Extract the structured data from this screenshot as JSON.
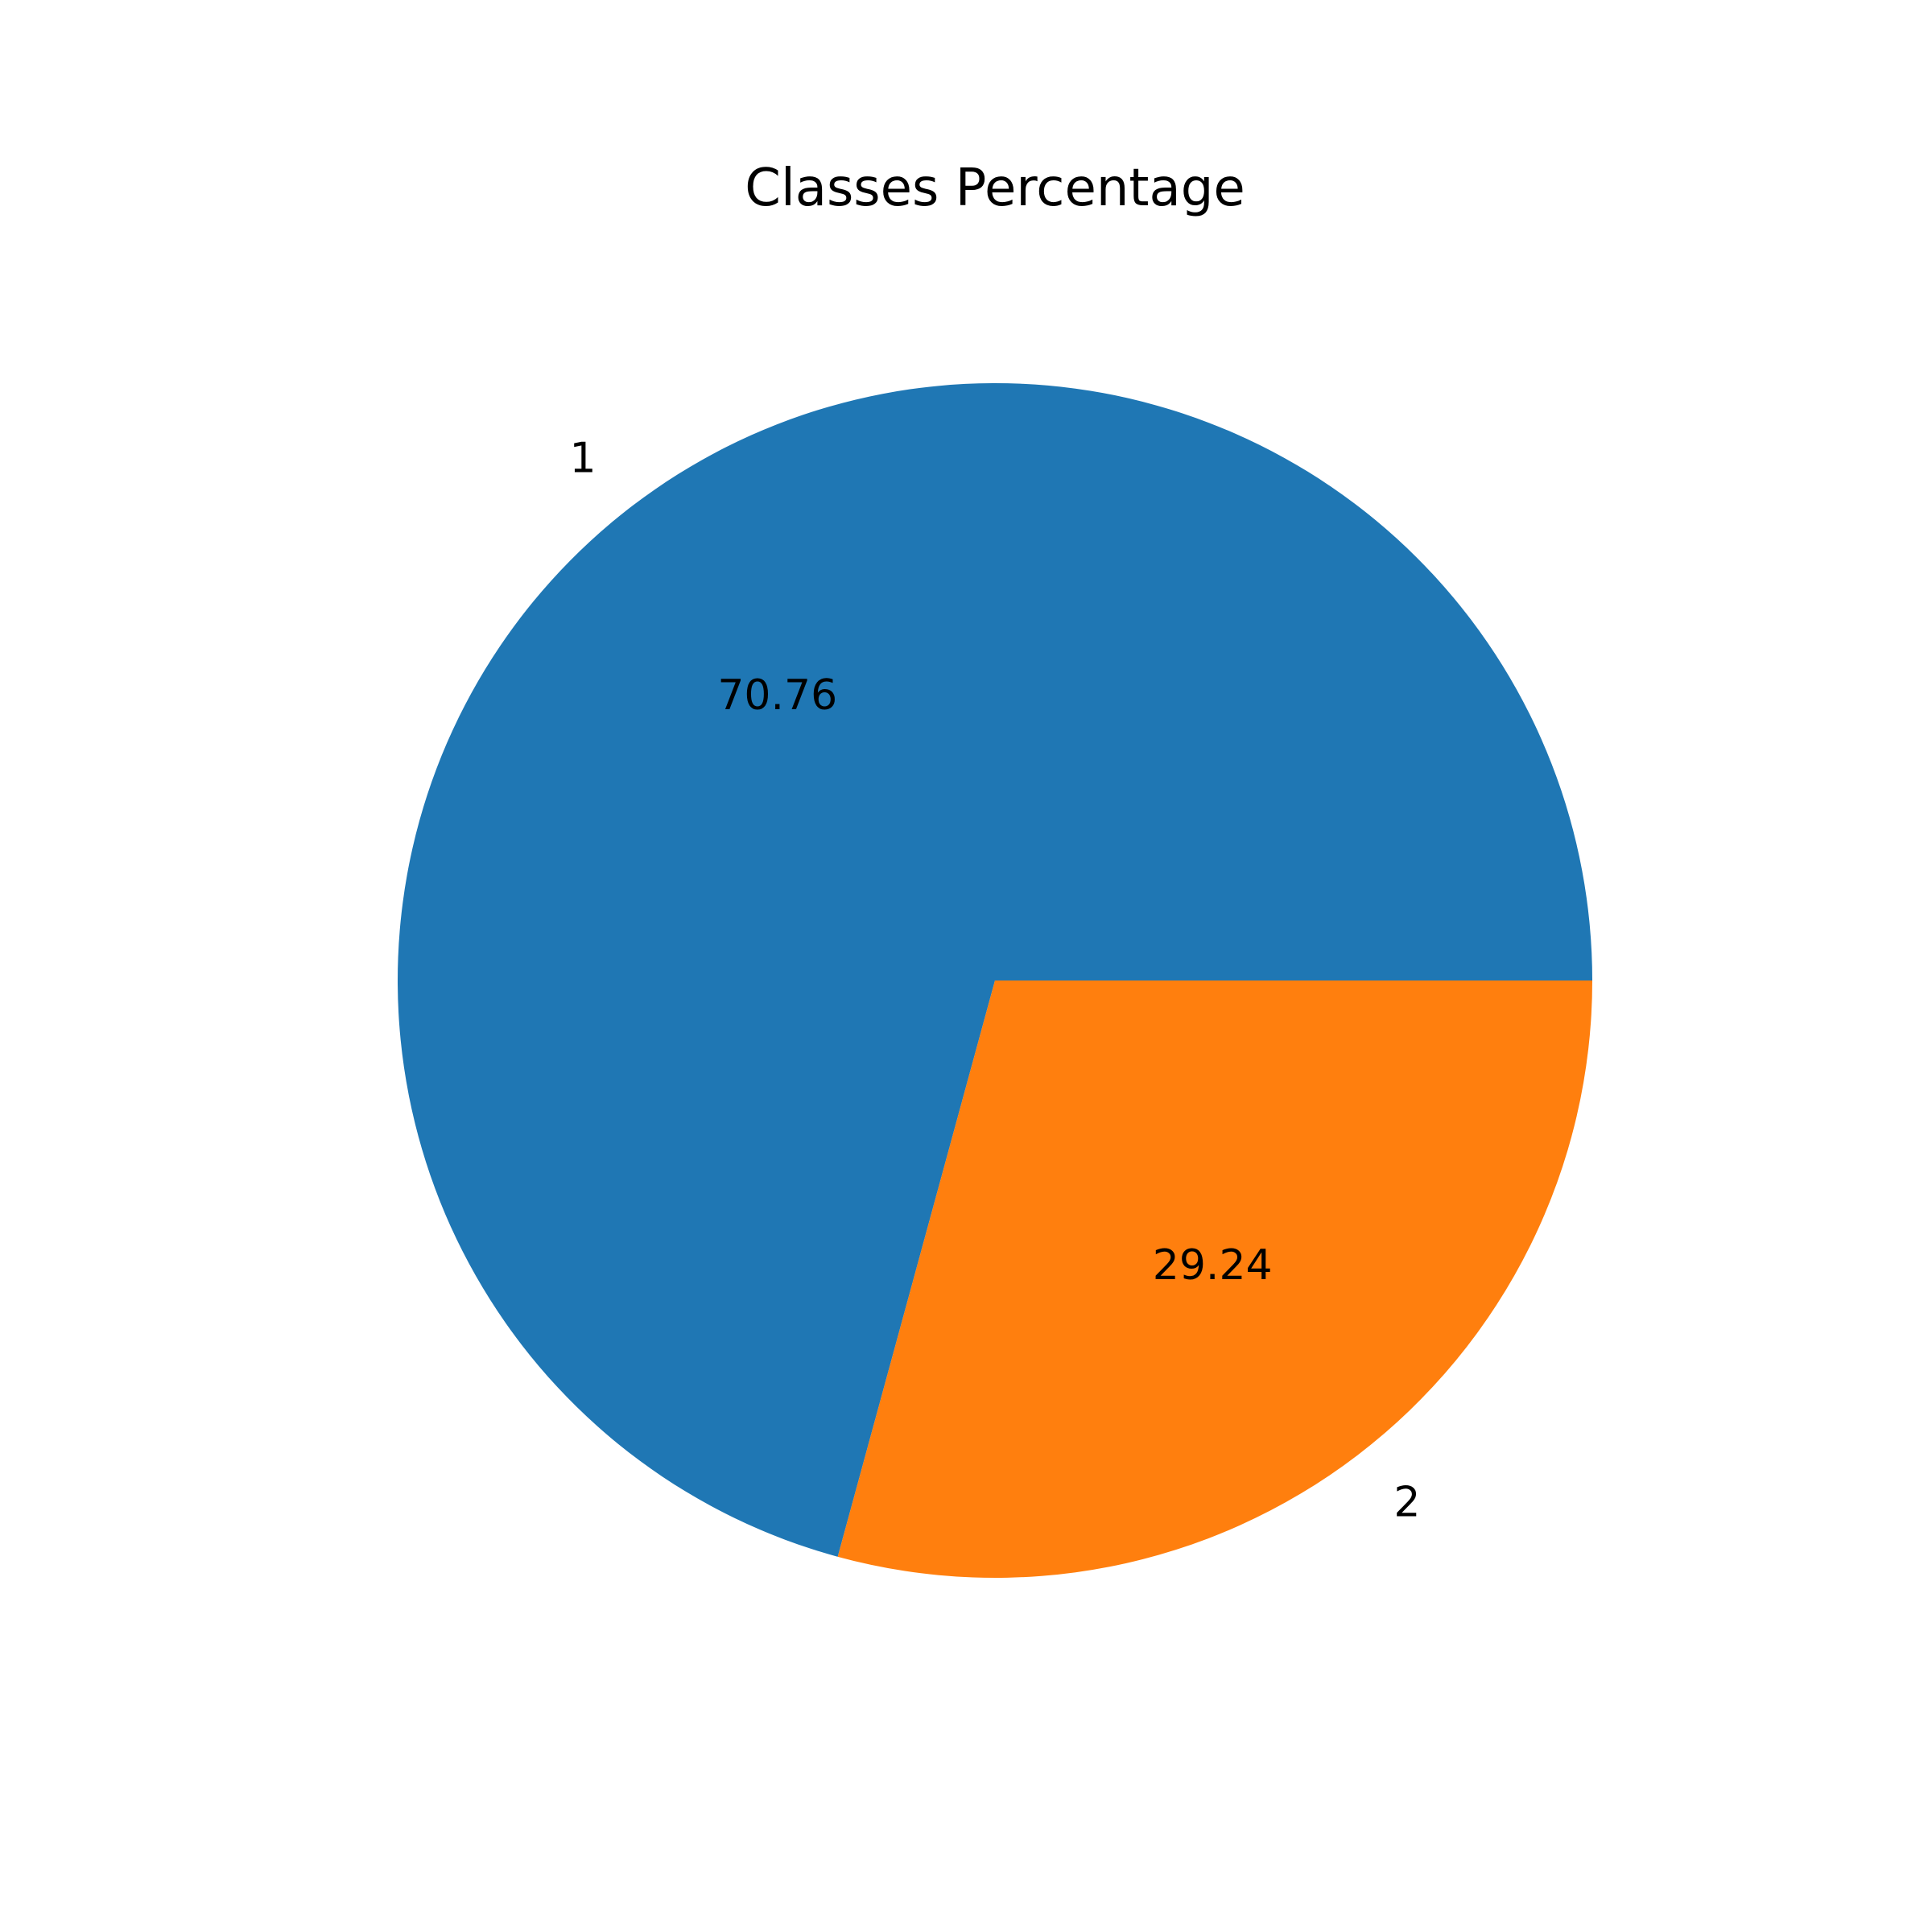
{
  "chart_data": {
    "type": "pie",
    "title": "Classes Percentage",
    "start_angle_deg": 0,
    "direction": "counterclockwise",
    "slices": [
      {
        "label": "1",
        "value": 70.76,
        "value_label": "70.76",
        "color": "#1f77b4"
      },
      {
        "label": "2",
        "value": 29.24,
        "value_label": "29.24",
        "color": "#ff7f0e"
      }
    ]
  }
}
